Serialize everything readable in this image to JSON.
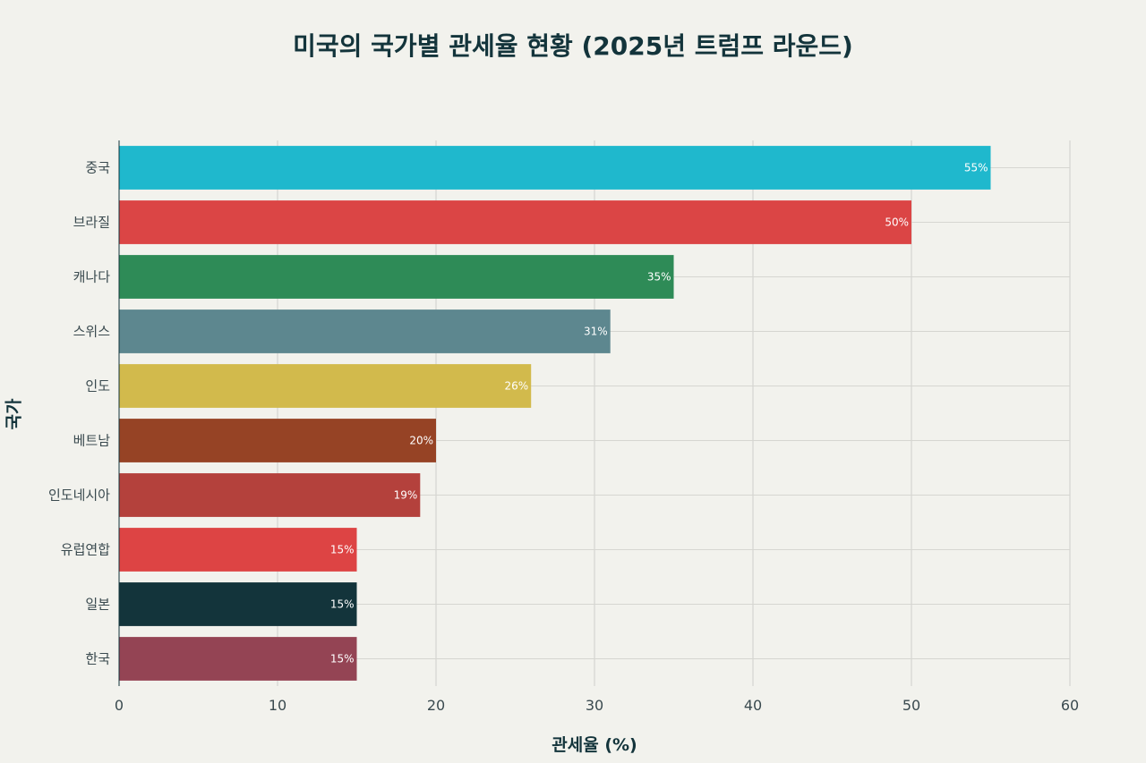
{
  "chart_data": {
    "type": "bar",
    "orientation": "horizontal",
    "title": "미국의 국가별 관세율 현황 (2025년 트럼프 라운드)",
    "xlabel": "관세율 (%)",
    "ylabel": "국가",
    "xlim": [
      0,
      60
    ],
    "xticks": [
      "0",
      "10",
      "20",
      "30",
      "40",
      "50",
      "60"
    ],
    "grid": true,
    "categories": [
      "중국",
      "브라질",
      "캐나다",
      "스위스",
      "인도",
      "베트남",
      "인도네시아",
      "유럽연합",
      "일본",
      "한국"
    ],
    "values": [
      55,
      50,
      35,
      31,
      26,
      20,
      19,
      15,
      15,
      15
    ],
    "value_labels": [
      "55%",
      "50%",
      "35%",
      "31%",
      "26%",
      "20%",
      "19%",
      "15%",
      "15%",
      "15%"
    ],
    "colors": [
      "#1fb8cd",
      "#db4545",
      "#2e8b57",
      "#5d878f",
      "#d2ba4c",
      "#964325",
      "#b4413c",
      "#dd4444",
      "#13343b",
      "#944454"
    ]
  }
}
